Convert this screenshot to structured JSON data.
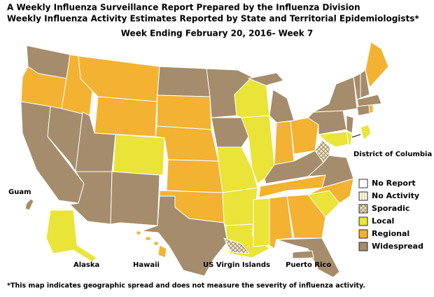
{
  "header": {
    "title": "A Weekly Influenza Surveillance Report Prepared by the Influenza Division",
    "subtitle": "Weekly Influenza Activity Estimates Reported by State and Territorial Epidemiologists*",
    "week": "Week Ending February 20, 2016- Week 7"
  },
  "legend": [
    {
      "label": "No Report",
      "color": "#ffffff"
    },
    {
      "label": "No Activity",
      "color": "#ffffff",
      "pattern": "stripes"
    },
    {
      "label": "Sporadic",
      "color": "#f2e6c4",
      "pattern": "crosshatch"
    },
    {
      "label": "Local",
      "color": "#e9e437"
    },
    {
      "label": "Regional",
      "color": "#f3b231"
    },
    {
      "label": "Widespread",
      "color": "#a58c6c"
    }
  ],
  "regions": [
    {
      "level": 5
    },
    {
      "level": 4
    },
    {
      "level": 5
    },
    {
      "level": 5
    },
    {
      "level": 4
    },
    {
      "level": 4
    },
    {
      "level": 4
    },
    {
      "level": 5
    },
    {
      "level": 5
    },
    {
      "level": 3
    },
    {
      "level": 5
    },
    {
      "level": 5
    },
    {
      "level": 4
    },
    {
      "level": 4
    },
    {
      "level": 4
    },
    {
      "level": 4
    },
    {
      "level": 5
    },
    {
      "level": 5
    },
    {
      "level": 5
    },
    {
      "level": 3
    },
    {
      "level": 3
    },
    {
      "level": 3
    },
    {
      "level": 3
    },
    {
      "level": 3
    },
    {
      "level": 5
    },
    {
      "level": 4
    },
    {
      "level": 4
    },
    {
      "level": 5
    },
    {
      "level": 4
    },
    {
      "level": 3
    },
    {
      "level": 4
    },
    {
      "level": 4
    },
    {
      "level": 3
    },
    {
      "level": 4
    },
    {
      "level": 5
    },
    {
      "level": 2
    },
    {
      "level": 5
    },
    {
      "level": 5
    },
    {
      "level": 5
    },
    {
      "level": 5
    },
    {
      "level": 3
    },
    {
      "level": 3
    },
    {
      "level": 5
    },
    {
      "level": 5
    },
    {
      "level": 4
    },
    {
      "level": 5
    },
    {
      "level": 5
    },
    {
      "level": 4
    },
    {
      "label": "District of Columbia",
      "level": 3
    },
    {
      "label": "Alaska",
      "level": 3
    },
    {
      "label": "Hawaii",
      "level": 4
    },
    {
      "label": "Guam",
      "level": 5
    },
    {
      "label": "US Virgin Islands",
      "level": 2
    },
    {
      "label": "Puerto Rico",
      "level": 5
    }
  ],
  "footnote": "*This map indicates geographic spread and does not measure the severity of influenza activity."
}
